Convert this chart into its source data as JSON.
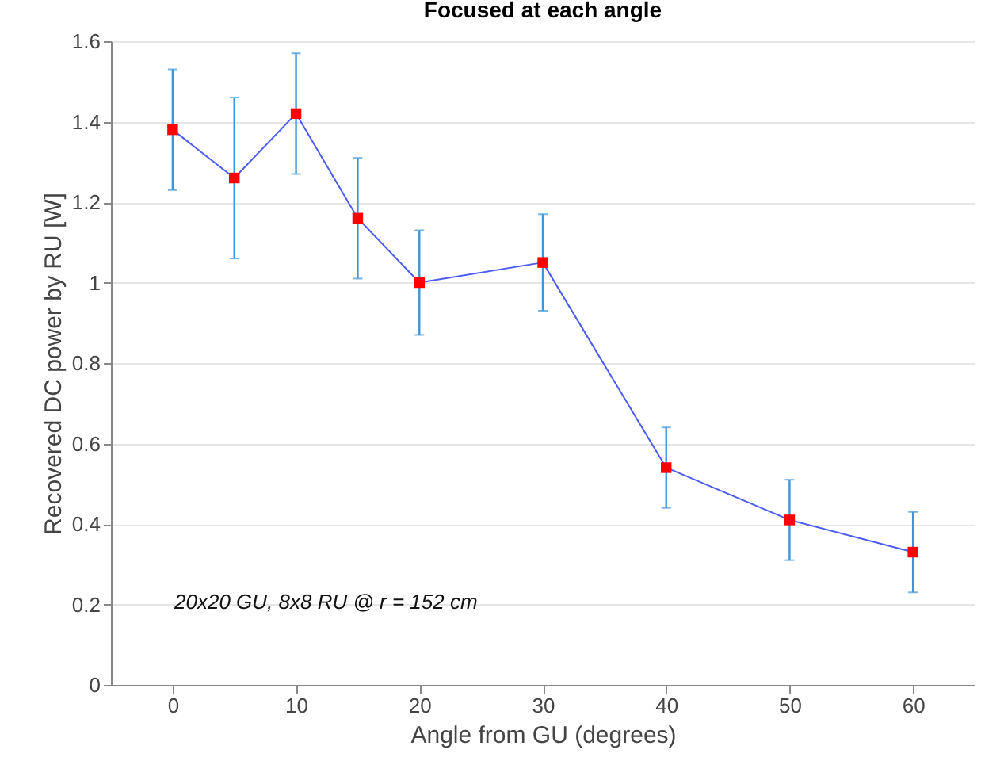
{
  "chart_data": {
    "type": "line",
    "title": "Focused at each angle",
    "xlabel": "Angle from GU (degrees)",
    "ylabel": "Recovered DC power by RU [W]",
    "x": [
      0,
      5,
      10,
      15,
      20,
      30,
      40,
      50,
      60
    ],
    "series": [
      {
        "color": "#4a5cf5",
        "values": [
          1.38,
          1.26,
          1.42,
          1.16,
          1.0,
          1.05,
          0.54,
          0.41,
          0.33
        ],
        "errors": [
          [
            1.23,
            1.53
          ],
          [
            1.06,
            1.46
          ],
          [
            1.27,
            1.57
          ],
          [
            1.01,
            1.31
          ],
          [
            0.87,
            1.13
          ],
          [
            0.93,
            1.17
          ],
          [
            0.44,
            0.64
          ],
          [
            0.31,
            0.51
          ],
          [
            0.23,
            0.43
          ]
        ]
      },
      {
        "type": "scatter",
        "marker": "square",
        "color": "#ff0000",
        "values": [
          1.38,
          1.26,
          1.42,
          1.16,
          1.0,
          1.05,
          0.54,
          0.41,
          0.33
        ]
      }
    ],
    "xlim": [
      -5,
      65
    ],
    "xticks": [
      0,
      10,
      20,
      30,
      40,
      50,
      60
    ],
    "ylim": [
      0,
      1.6
    ],
    "yticks": [
      0,
      0.2,
      0.4,
      0.6,
      0.8,
      1,
      1.2,
      1.4,
      1.6
    ],
    "grid": "y",
    "annotations": [
      "20x20 GU, 8x8 RU @ r = 152 cm"
    ]
  }
}
